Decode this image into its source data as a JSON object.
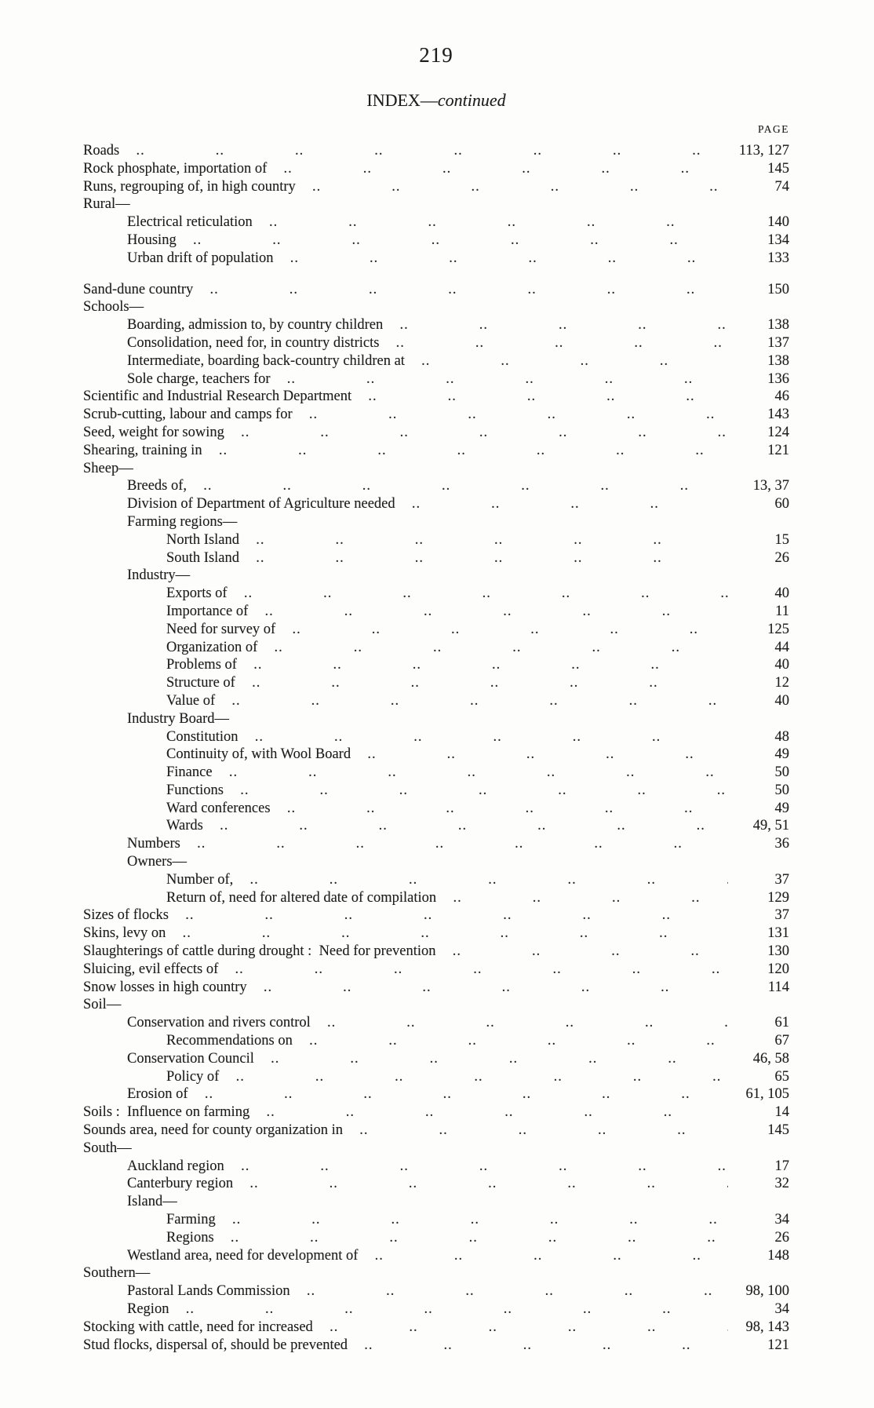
{
  "page": {
    "number": "219",
    "title_main": "INDEX—",
    "title_continued": "continued",
    "column_header": "PAGE"
  },
  "entries": [
    {
      "indent": 0,
      "label": "Roads",
      "page": "113, 127"
    },
    {
      "indent": 0,
      "label": "Rock phosphate, importation of",
      "page": "145"
    },
    {
      "indent": 0,
      "label": "Runs, regrouping of, in high country",
      "page": "74"
    },
    {
      "indent": 0,
      "label": "Rural—",
      "page": ""
    },
    {
      "indent": 1,
      "label": "Electrical reticulation",
      "page": "140"
    },
    {
      "indent": 1,
      "label": "Housing",
      "page": "134"
    },
    {
      "indent": 1,
      "label": "Urban drift of population",
      "page": "133",
      "gap_after": true
    },
    {
      "indent": 0,
      "label": "Sand-dune country",
      "page": "150"
    },
    {
      "indent": 0,
      "label": "Schools—",
      "page": ""
    },
    {
      "indent": 1,
      "label": "Boarding, admission to, by country children",
      "page": "138"
    },
    {
      "indent": 1,
      "label": "Consolidation, need for, in country districts",
      "page": "137"
    },
    {
      "indent": 1,
      "label": "Intermediate, boarding back-country children at",
      "page": "138"
    },
    {
      "indent": 1,
      "label": "Sole charge, teachers for",
      "page": "136"
    },
    {
      "indent": 0,
      "label": "Scientific and Industrial Research Department",
      "page": "46"
    },
    {
      "indent": 0,
      "label": "Scrub-cutting, labour and camps for",
      "page": "143"
    },
    {
      "indent": 0,
      "label": "Seed, weight for sowing",
      "page": "124"
    },
    {
      "indent": 0,
      "label": "Shearing, training in",
      "page": "121"
    },
    {
      "indent": 0,
      "label": "Sheep—",
      "page": ""
    },
    {
      "indent": 1,
      "label": "Breeds of,",
      "page": "13, 37"
    },
    {
      "indent": 1,
      "label": "Division of Department of Agriculture needed",
      "page": "60"
    },
    {
      "indent": 1,
      "label": "Farming regions—",
      "page": ""
    },
    {
      "indent": 2,
      "label": "North Island",
      "page": "15"
    },
    {
      "indent": 2,
      "label": "South Island",
      "page": "26"
    },
    {
      "indent": 1,
      "label": "Industry—",
      "page": ""
    },
    {
      "indent": 2,
      "label": "Exports of",
      "page": "40"
    },
    {
      "indent": 2,
      "label": "Importance of",
      "page": "11"
    },
    {
      "indent": 2,
      "label": "Need for survey of",
      "page": "125"
    },
    {
      "indent": 2,
      "label": "Organization of",
      "page": "44"
    },
    {
      "indent": 2,
      "label": "Problems of",
      "page": "40"
    },
    {
      "indent": 2,
      "label": "Structure of",
      "page": "12"
    },
    {
      "indent": 2,
      "label": "Value of",
      "page": "40"
    },
    {
      "indent": 1,
      "label": "Industry Board—",
      "page": ""
    },
    {
      "indent": 2,
      "label": "Constitution",
      "page": "48"
    },
    {
      "indent": 2,
      "label": "Continuity of, with Wool Board",
      "page": "49"
    },
    {
      "indent": 2,
      "label": "Finance",
      "page": "50"
    },
    {
      "indent": 2,
      "label": "Functions",
      "page": "50"
    },
    {
      "indent": 2,
      "label": "Ward conferences",
      "page": "49"
    },
    {
      "indent": 2,
      "label": "Wards",
      "page": "49, 51"
    },
    {
      "indent": 1,
      "label": "Numbers",
      "page": "36"
    },
    {
      "indent": 1,
      "label": "Owners—",
      "page": ""
    },
    {
      "indent": 2,
      "label": "Number of,",
      "page": "37"
    },
    {
      "indent": 2,
      "label": "Return of, need for altered date of compilation",
      "page": "129"
    },
    {
      "indent": 0,
      "label": "Sizes of flocks",
      "page": "37"
    },
    {
      "indent": 0,
      "label": "Skins, levy on",
      "page": "131"
    },
    {
      "indent": 0,
      "label": "Slaughterings of cattle during drought :  Need for prevention",
      "page": "130"
    },
    {
      "indent": 0,
      "label": "Sluicing, evil effects of",
      "page": "120"
    },
    {
      "indent": 0,
      "label": "Snow losses in high country",
      "page": "114"
    },
    {
      "indent": 0,
      "label": "Soil—",
      "page": ""
    },
    {
      "indent": 1,
      "label": "Conservation and rivers control",
      "page": "61"
    },
    {
      "indent": 2,
      "label": "Recommendations on",
      "page": "67"
    },
    {
      "indent": 1,
      "label": "Conservation Council",
      "page": "46, 58"
    },
    {
      "indent": 2,
      "label": "Policy of",
      "page": "65"
    },
    {
      "indent": 1,
      "label": "Erosion of",
      "page": "61, 105"
    },
    {
      "indent": 0,
      "label": "Soils :  Influence on farming",
      "page": "14"
    },
    {
      "indent": 0,
      "label": "Sounds area, need for county organization in",
      "page": "145"
    },
    {
      "indent": 0,
      "label": "South—",
      "page": ""
    },
    {
      "indent": 1,
      "label": "Auckland region",
      "page": "17"
    },
    {
      "indent": 1,
      "label": "Canterbury region",
      "page": "32"
    },
    {
      "indent": 1,
      "label": "Island—",
      "page": ""
    },
    {
      "indent": 2,
      "label": "Farming",
      "page": "34"
    },
    {
      "indent": 2,
      "label": "Regions",
      "page": "26"
    },
    {
      "indent": 1,
      "label": "Westland area, need for development of",
      "page": "148"
    },
    {
      "indent": 0,
      "label": "Southern—",
      "page": ""
    },
    {
      "indent": 1,
      "label": "Pastoral Lands Commission",
      "page": "98, 100"
    },
    {
      "indent": 1,
      "label": "Region",
      "page": "34"
    },
    {
      "indent": 0,
      "label": "Stocking with cattle, need for increased",
      "page": "98, 143"
    },
    {
      "indent": 0,
      "label": "Stud flocks, dispersal of, should be prevented",
      "page": "121"
    }
  ]
}
